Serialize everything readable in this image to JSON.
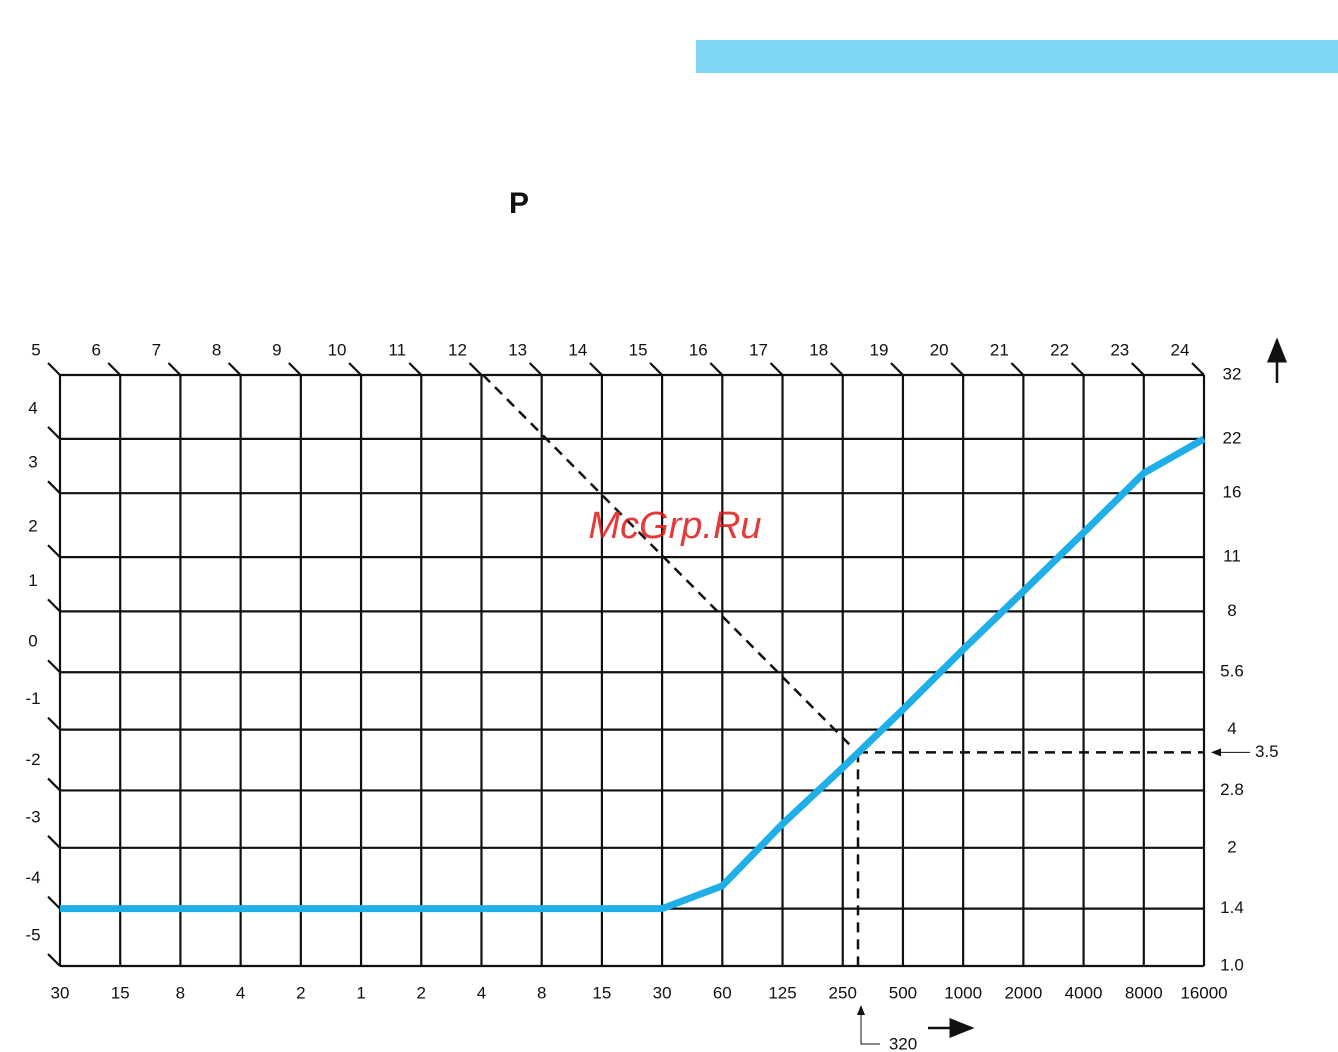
{
  "chart_data": {
    "type": "line",
    "title": "P",
    "watermark": "McGrp.Ru",
    "categories": [
      "30",
      "15",
      "8",
      "4",
      "2",
      "1",
      "2",
      "4",
      "8",
      "15",
      "30",
      "60",
      "125",
      "250",
      "500",
      "1000",
      "2000",
      "4000",
      "8000",
      "16000"
    ],
    "series": [
      {
        "color": "#1eaee8",
        "values": [
          1.4,
          1.4,
          1.4,
          1.4,
          1.4,
          1.4,
          1.4,
          1.4,
          1.4,
          1.4,
          1.4,
          1.6,
          2.3,
          3.2,
          4.5,
          6.4,
          9,
          12.7,
          18,
          22
        ]
      }
    ],
    "ylim": [
      1,
      32
    ],
    "log_y": true,
    "yticks": [
      {
        "value": 1,
        "label": "1.0"
      },
      1.4,
      2,
      2.8,
      4,
      5.6,
      8,
      11,
      16,
      22,
      32
    ],
    "top_labels": [
      5,
      6,
      7,
      8,
      9,
      10,
      11,
      12,
      13,
      14,
      15,
      16,
      17,
      18,
      19,
      20,
      21,
      22,
      23,
      24
    ],
    "left_labels": [
      4,
      3,
      2,
      1,
      0,
      -1,
      -2,
      -3,
      -4,
      -5
    ],
    "y_marker": 3.5,
    "x_marker": "320"
  }
}
